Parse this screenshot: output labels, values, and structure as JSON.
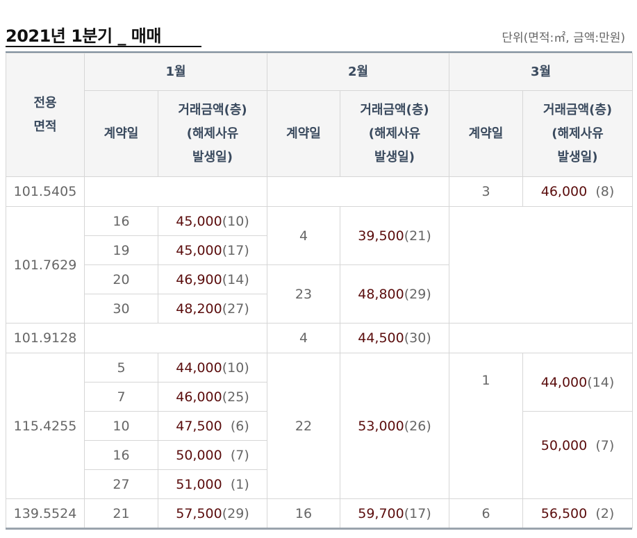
{
  "header": {
    "title": "2021년 1분기 _ 매매",
    "unit": "단위(면적:㎡, 금액:만원)"
  },
  "table": {
    "area_header": "전용\n면적",
    "months": [
      "1월",
      "2월",
      "3월"
    ],
    "day_header": "계약일",
    "amount_header": "거래금액(층)\n(해제사유\n발생일)",
    "rows": {
      "r1": {
        "area": "101.5405",
        "m3_day": "3",
        "m3_price": "46,000",
        "m3_floor": "(8)"
      },
      "r2": {
        "area": "101.7629",
        "m1": [
          {
            "day": "16",
            "price": "45,000",
            "floor": "(10)"
          },
          {
            "day": "19",
            "price": "45,000",
            "floor": "(17)"
          },
          {
            "day": "20",
            "price": "46,900",
            "floor": "(14)"
          },
          {
            "day": "30",
            "price": "48,200",
            "floor": "(27)"
          }
        ],
        "m2": [
          {
            "day": "4",
            "price": "39,500",
            "floor": "(21)"
          },
          {
            "day": "23",
            "price": "48,800",
            "floor": "(29)"
          }
        ]
      },
      "r3": {
        "area": "101.9128",
        "m2_day": "4",
        "m2_price": "44,500",
        "m2_floor": "(30)"
      },
      "r4": {
        "area": "115.4255",
        "m1": [
          {
            "day": "5",
            "price": "44,000",
            "floor": "(10)"
          },
          {
            "day": "7",
            "price": "46,000",
            "floor": "(25)"
          },
          {
            "day": "10",
            "price": "47,500",
            "floor": "(6)"
          },
          {
            "day": "16",
            "price": "50,000",
            "floor": "(7)"
          },
          {
            "day": "27",
            "price": "51,000",
            "floor": "(1)"
          }
        ],
        "m2": {
          "day": "22",
          "price": "53,000",
          "floor": "(26)"
        },
        "m3_day": "1",
        "m3": [
          {
            "price": "44,000",
            "floor": "(14)"
          },
          {
            "price": "50,000",
            "floor": "(7)"
          }
        ]
      },
      "r5": {
        "area": "139.5524",
        "m1": {
          "day": "21",
          "price": "57,500",
          "floor": "(29)"
        },
        "m2": {
          "day": "16",
          "price": "59,700",
          "floor": "(17)"
        },
        "m3": {
          "day": "6",
          "price": "56,500",
          "floor": "(2)"
        }
      }
    }
  }
}
